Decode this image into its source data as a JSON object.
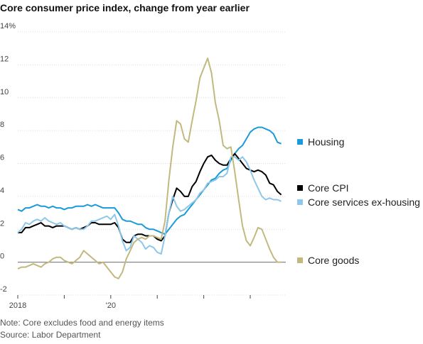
{
  "chart_data": {
    "type": "line",
    "title": "Core consumer price index, change from year earlier",
    "categories": [
      "2018",
      null,
      null,
      null,
      null,
      null,
      null,
      null,
      null,
      null,
      null,
      null,
      null,
      null,
      null,
      null,
      null,
      null,
      null,
      null,
      null,
      null,
      null,
      null,
      "'20",
      null,
      null,
      null,
      null,
      null,
      null,
      null,
      null,
      null,
      null,
      null,
      null,
      null,
      null,
      null,
      null,
      null,
      null,
      null,
      null,
      null,
      null,
      null,
      null,
      null,
      null,
      null,
      null,
      null,
      null,
      null,
      null,
      null,
      null,
      null,
      null,
      null,
      null,
      null,
      null,
      null,
      null,
      null,
      null
    ],
    "series": [
      {
        "name": "Housing",
        "color": "#1a9bd7",
        "values": [
          3.2,
          3.1,
          3.3,
          3.3,
          3.4,
          3.5,
          3.4,
          3.4,
          3.3,
          3.4,
          3.3,
          3.3,
          3.2,
          3.3,
          3.3,
          3.4,
          3.4,
          3.4,
          3.5,
          3.4,
          3.5,
          3.4,
          3.3,
          3.3,
          3.3,
          3.3,
          3.0,
          2.6,
          2.5,
          2.5,
          2.4,
          2.3,
          2.3,
          2.1,
          2.0,
          2.0,
          1.9,
          1.8,
          1.7,
          2.0,
          2.3,
          2.6,
          2.8,
          2.9,
          3.2,
          3.5,
          3.8,
          4.1,
          4.4,
          4.7,
          5.0,
          5.1,
          5.4,
          5.6,
          5.7,
          6.2,
          6.6,
          6.9,
          7.1,
          7.5,
          7.9,
          8.1,
          8.2,
          8.2,
          8.1,
          8.0,
          7.8,
          7.3,
          7.2
        ]
      },
      {
        "name": "Core CPI",
        "color": "#000000",
        "values": [
          1.8,
          1.8,
          2.1,
          2.1,
          2.2,
          2.3,
          2.4,
          2.2,
          2.2,
          2.1,
          2.2,
          2.2,
          2.2,
          2.1,
          2.0,
          2.1,
          2.0,
          2.1,
          2.2,
          2.4,
          2.4,
          2.3,
          2.3,
          2.3,
          2.3,
          2.4,
          2.1,
          1.4,
          1.2,
          1.2,
          1.6,
          1.7,
          1.7,
          1.6,
          1.6,
          1.6,
          1.4,
          1.3,
          1.6,
          3.0,
          3.8,
          4.5,
          4.3,
          4.0,
          4.0,
          4.6,
          4.9,
          5.5,
          6.0,
          6.4,
          6.5,
          6.2,
          6.0,
          5.9,
          5.9,
          6.3,
          6.6,
          6.3,
          6.0,
          5.7,
          5.6,
          5.5,
          5.6,
          5.5,
          5.3,
          4.8,
          4.7,
          4.3,
          4.1
        ]
      },
      {
        "name": "Core services ex-housing",
        "color": "#8ec7ec",
        "values": [
          1.8,
          2.0,
          2.4,
          2.3,
          2.5,
          2.6,
          2.5,
          2.7,
          2.5,
          2.4,
          2.3,
          2.4,
          2.2,
          2.1,
          2.0,
          2.1,
          2.0,
          2.0,
          2.2,
          2.5,
          2.5,
          2.6,
          2.7,
          2.8,
          2.6,
          2.9,
          2.2,
          1.3,
          0.7,
          0.9,
          1.6,
          1.4,
          1.2,
          0.8,
          1.0,
          0.9,
          0.6,
          0.5,
          1.6,
          3.0,
          4.0,
          3.4,
          3.1,
          3.2,
          3.4,
          3.6,
          3.8,
          4.2,
          4.4,
          4.8,
          4.9,
          5.0,
          5.2,
          5.2,
          5.4,
          6.4,
          6.4,
          6.2,
          6.4,
          6.1,
          5.6,
          5.0,
          4.5,
          4.0,
          3.8,
          3.9,
          3.8,
          3.8,
          3.7
        ]
      },
      {
        "name": "Core goods",
        "color": "#c2b97f",
        "values": [
          -0.4,
          -0.3,
          -0.3,
          -0.2,
          -0.1,
          -0.2,
          -0.3,
          -0.1,
          0.0,
          0.2,
          0.3,
          0.3,
          0.1,
          0.0,
          -0.1,
          0.1,
          0.3,
          0.7,
          0.5,
          0.3,
          0.1,
          -0.1,
          0.0,
          -0.3,
          -0.6,
          -0.9,
          -1.0,
          -0.6,
          0.2,
          0.7,
          1.2,
          1.4,
          1.5,
          1.4,
          1.6,
          1.6,
          1.5,
          1.4,
          2.5,
          5.0,
          7.0,
          8.6,
          8.4,
          7.5,
          7.3,
          8.6,
          9.8,
          11.2,
          11.8,
          12.4,
          11.5,
          9.7,
          8.6,
          7.1,
          6.9,
          7.0,
          5.5,
          3.8,
          2.2,
          1.3,
          1.0,
          1.5,
          2.1,
          2.0,
          1.4,
          0.8,
          0.3,
          0.0,
          0.0
        ]
      }
    ],
    "ylim": [
      -2,
      14
    ],
    "yticks": [
      -2,
      0,
      2,
      4,
      6,
      8,
      10,
      12,
      {
        "value": 14,
        "label": "14%"
      }
    ],
    "grid": true,
    "note": "Note: Core excludes food and energy items",
    "source": "Source: Labor Department"
  }
}
